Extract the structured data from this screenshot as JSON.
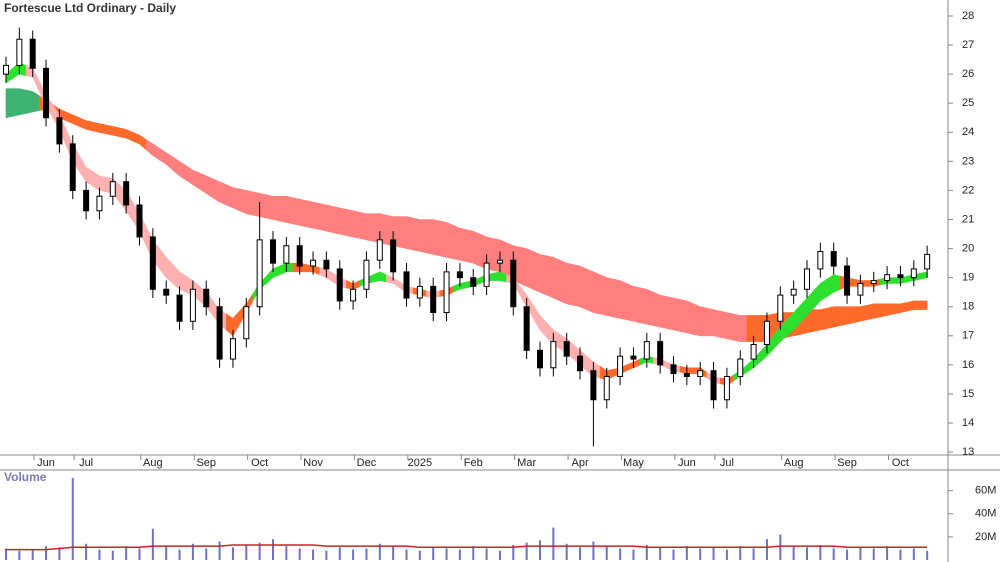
{
  "chart_data": [
    {
      "type": "candlestick",
      "title": "Fortescue Ltd Ordinary - Daily",
      "categories": [
        null,
        null,
        null,
        "Jun",
        null,
        null,
        "Jul",
        null,
        null,
        null,
        null,
        "Aug",
        null,
        null,
        null,
        "Sep",
        null,
        null,
        null,
        "Oct",
        null,
        null,
        null,
        "Nov",
        null,
        null,
        null,
        "Dec",
        null,
        null,
        null,
        "2025",
        null,
        null,
        null,
        "Feb",
        null,
        null,
        null,
        "Mar",
        null,
        null,
        null,
        "Apr",
        null,
        null,
        null,
        "May",
        null,
        null,
        null,
        "Jun",
        null,
        null,
        "Jul",
        null,
        null,
        null,
        null,
        "Aug",
        null,
        null,
        null,
        "Sep",
        null,
        null,
        null,
        "Oct",
        null,
        null
      ],
      "open": [
        26.0,
        26.3,
        27.2,
        26.2,
        24.5,
        23.6,
        22.0,
        21.3,
        21.8,
        22.3,
        21.5,
        20.4,
        18.6,
        18.4,
        17.5,
        18.6,
        18.0,
        16.2,
        16.9,
        18.0,
        20.3,
        19.5,
        20.1,
        19.4,
        19.6,
        19.3,
        18.2,
        18.6,
        19.6,
        20.3,
        19.2,
        18.3,
        18.7,
        17.8,
        19.2,
        19.0,
        18.7,
        19.5,
        19.6,
        18.0,
        16.5,
        15.9,
        16.8,
        16.3,
        15.8,
        14.8,
        15.6,
        16.3,
        16.2,
        16.8,
        16.0,
        15.7,
        15.6,
        15.8,
        14.8,
        15.6,
        16.2,
        16.7,
        17.5,
        18.4,
        18.6,
        19.3,
        19.9,
        19.4,
        18.4,
        18.8,
        18.9,
        19.1,
        19.0,
        19.3
      ],
      "high": [
        26.6,
        27.6,
        27.5,
        26.5,
        24.8,
        23.9,
        22.3,
        22.1,
        22.6,
        22.6,
        21.8,
        20.7,
        18.9,
        18.7,
        18.9,
        18.9,
        18.3,
        17.2,
        18.3,
        21.6,
        20.6,
        20.4,
        20.4,
        19.9,
        19.9,
        19.6,
        18.9,
        19.9,
        20.6,
        20.6,
        19.5,
        19.0,
        19.0,
        19.5,
        19.5,
        19.3,
        19.8,
        19.9,
        19.9,
        18.3,
        16.8,
        17.1,
        17.1,
        16.6,
        16.1,
        15.9,
        16.6,
        16.6,
        17.1,
        17.1,
        16.3,
        16.0,
        16.1,
        16.1,
        15.9,
        16.5,
        17.0,
        17.8,
        18.7,
        18.9,
        19.6,
        20.2,
        20.2,
        19.7,
        19.1,
        19.2,
        19.4,
        19.4,
        19.6,
        20.1
      ],
      "low": [
        25.7,
        26.0,
        25.9,
        24.2,
        23.3,
        21.7,
        21.0,
        21.0,
        21.5,
        21.2,
        20.1,
        18.3,
        18.1,
        17.2,
        17.2,
        17.7,
        15.9,
        15.9,
        16.6,
        17.7,
        19.2,
        19.2,
        19.1,
        19.1,
        19.0,
        17.9,
        17.9,
        18.3,
        19.3,
        18.9,
        18.0,
        18.0,
        17.5,
        17.5,
        18.7,
        18.4,
        18.4,
        19.2,
        17.7,
        16.2,
        15.6,
        15.6,
        16.0,
        15.5,
        13.2,
        14.5,
        15.3,
        15.9,
        15.9,
        15.7,
        15.4,
        15.3,
        15.3,
        14.5,
        14.5,
        15.3,
        15.9,
        16.4,
        17.2,
        18.1,
        18.3,
        19.0,
        19.1,
        18.1,
        18.1,
        18.5,
        18.6,
        18.7,
        18.7,
        19.0
      ],
      "close": [
        26.3,
        27.2,
        26.2,
        24.5,
        23.6,
        22.0,
        21.3,
        21.8,
        22.3,
        21.5,
        20.4,
        18.6,
        18.4,
        17.5,
        18.6,
        18.0,
        16.2,
        16.9,
        18.0,
        20.3,
        19.5,
        20.1,
        19.4,
        19.6,
        19.3,
        18.2,
        18.6,
        19.6,
        20.3,
        19.2,
        18.3,
        18.7,
        17.8,
        19.2,
        19.0,
        18.7,
        19.5,
        19.6,
        18.0,
        16.5,
        15.9,
        16.8,
        16.3,
        15.8,
        14.8,
        15.6,
        16.3,
        16.2,
        16.8,
        16.0,
        15.7,
        15.6,
        15.8,
        14.8,
        15.6,
        16.2,
        16.7,
        17.5,
        18.4,
        18.6,
        19.3,
        19.9,
        19.4,
        18.4,
        18.8,
        18.9,
        19.1,
        19.0,
        19.3,
        19.8
      ],
      "color": "#000000",
      "ylim": [
        12.9,
        28.55
      ],
      "yticks": [
        13,
        14,
        15,
        16,
        17,
        18,
        19,
        20,
        21,
        22,
        23,
        24,
        25,
        26,
        27,
        28
      ],
      "ribbons": [
        {
          "upper": [
            25.5,
            25.5,
            25.4,
            25.1,
            24.8,
            24.6,
            24.4,
            24.3,
            24.2,
            24.1,
            23.9,
            23.6,
            23.3,
            23.0,
            22.7,
            22.5,
            22.3,
            22.1,
            22.0,
            21.9,
            21.8,
            21.8,
            21.7,
            21.6,
            21.5,
            21.4,
            21.3,
            21.2,
            21.2,
            21.1,
            21.1,
            21.0,
            21.0,
            20.9,
            20.7,
            20.6,
            20.4,
            20.3,
            20.1,
            20.0,
            19.8,
            19.7,
            19.5,
            19.4,
            19.2,
            19.0,
            18.9,
            18.7,
            18.6,
            18.4,
            18.3,
            18.2,
            18.0,
            17.9,
            17.8,
            17.7,
            17.7,
            17.7,
            17.8,
            17.8,
            17.9,
            17.9,
            18.0,
            18.0,
            18.0,
            18.1,
            18.1,
            18.1,
            18.2,
            18.2
          ],
          "lower": [
            24.5,
            24.6,
            24.7,
            24.8,
            24.5,
            24.3,
            24.1,
            24.0,
            23.9,
            23.8,
            23.6,
            23.2,
            22.9,
            22.5,
            22.2,
            21.9,
            21.6,
            21.4,
            21.2,
            21.1,
            21.0,
            20.9,
            20.8,
            20.7,
            20.6,
            20.5,
            20.4,
            20.3,
            20.2,
            20.1,
            20.0,
            19.9,
            19.8,
            19.7,
            19.6,
            19.5,
            19.3,
            19.2,
            18.9,
            18.7,
            18.5,
            18.3,
            18.1,
            18.0,
            17.8,
            17.7,
            17.6,
            17.5,
            17.4,
            17.3,
            17.2,
            17.1,
            17.0,
            17.0,
            16.9,
            16.8,
            16.8,
            16.8,
            16.9,
            17.0,
            17.1,
            17.2,
            17.3,
            17.4,
            17.5,
            17.6,
            17.7,
            17.8,
            17.9,
            17.9
          ],
          "colors": [
            "#3cb371",
            "#3cb371",
            "#3cb371",
            "#ff6a2a",
            "#ff6a2a",
            "#ff6a2a",
            "#ff6a2a",
            "#ff6a2a",
            "#ff6a2a",
            "#ff6a2a",
            "#ff6a2a",
            "#ff7f7f",
            "#ff7f7f",
            "#ff7f7f",
            "#ff7f7f",
            "#ff7f7f",
            "#ff7f7f",
            "#ff7f7f",
            "#ff7f7f",
            "#ff7f7f",
            "#ff7f7f",
            "#ff7f7f",
            "#ff7f7f",
            "#ff7f7f",
            "#ff7f7f",
            "#ff7f7f",
            "#ff7f7f",
            "#ff7f7f",
            "#ff7f7f",
            "#ff7f7f",
            "#ff7f7f",
            "#ff7f7f",
            "#ff7f7f",
            "#ff7f7f",
            "#ff7f7f",
            "#ff7f7f",
            "#ff7f7f",
            "#ff7f7f",
            "#ff7f7f",
            "#ff7f7f",
            "#ff7f7f",
            "#ff7f7f",
            "#ff7f7f",
            "#ff7f7f",
            "#ff7f7f",
            "#ff7f7f",
            "#ff7f7f",
            "#ff7f7f",
            "#ff7f7f",
            "#ff7f7f",
            "#ff7f7f",
            "#ff7f7f",
            "#ff7f7f",
            "#ff7f7f",
            "#ff7f7f",
            "#ff7f7f",
            "#ff6a2a",
            "#ff6a2a",
            "#ff6a2a",
            "#ff6a2a",
            "#ff6a2a",
            "#ff6a2a",
            "#ff6a2a",
            "#ff6a2a",
            "#ff6a2a",
            "#ff6a2a",
            "#ff6a2a",
            "#ff6a2a",
            "#ff6a2a",
            "#ff6a2a"
          ]
        },
        {
          "upper": [
            26.0,
            26.4,
            26.2,
            25.3,
            24.6,
            23.6,
            22.8,
            22.5,
            22.4,
            22.0,
            21.2,
            20.3,
            19.7,
            19.2,
            18.9,
            18.5,
            17.9,
            17.6,
            18.1,
            18.8,
            19.3,
            19.5,
            19.5,
            19.4,
            19.3,
            19.0,
            18.8,
            19.0,
            19.2,
            19.0,
            18.7,
            18.6,
            18.5,
            18.6,
            18.8,
            18.9,
            19.1,
            19.2,
            19.0,
            18.4,
            17.7,
            17.2,
            16.9,
            16.5,
            16.1,
            15.8,
            15.9,
            16.1,
            16.3,
            16.2,
            16.0,
            15.9,
            15.9,
            15.6,
            15.5,
            15.8,
            16.2,
            16.7,
            17.3,
            17.8,
            18.3,
            18.8,
            19.1,
            19.0,
            18.9,
            18.9,
            19.0,
            19.0,
            19.1,
            19.2
          ],
          "lower": [
            25.7,
            26.0,
            25.9,
            24.9,
            24.1,
            23.0,
            22.3,
            22.0,
            21.9,
            21.3,
            20.6,
            19.6,
            19.0,
            18.6,
            18.4,
            18.0,
            17.4,
            17.0,
            17.8,
            18.6,
            19.0,
            19.2,
            19.2,
            19.2,
            19.0,
            18.7,
            18.6,
            18.8,
            18.9,
            18.8,
            18.5,
            18.4,
            18.3,
            18.4,
            18.6,
            18.7,
            18.9,
            18.9,
            18.8,
            18.0,
            17.2,
            16.7,
            16.4,
            16.0,
            15.6,
            15.5,
            15.7,
            15.9,
            16.1,
            16.0,
            15.8,
            15.7,
            15.7,
            15.4,
            15.3,
            15.6,
            15.9,
            16.3,
            16.8,
            17.2,
            17.7,
            18.2,
            18.5,
            18.7,
            18.7,
            18.7,
            18.8,
            18.8,
            18.9,
            19.0
          ],
          "colors": [
            "#2ee02e",
            "#2ee02e",
            "#ffb0b0",
            "#ffb0b0",
            "#ffb0b0",
            "#ffb0b0",
            "#ffb0b0",
            "#ffb0b0",
            "#ffb0b0",
            "#ffb0b0",
            "#ffb0b0",
            "#ffb0b0",
            "#ffb0b0",
            "#ffb0b0",
            "#ffb0b0",
            "#ffb0b0",
            "#ffb0b0",
            "#ff6a2a",
            "#ff6a2a",
            "#2ee02e",
            "#2ee02e",
            "#2ee02e",
            "#ff6a2a",
            "#ff6a2a",
            "#ffb0b0",
            "#ffb0b0",
            "#ff6a2a",
            "#2ee02e",
            "#2ee02e",
            "#ffb0b0",
            "#ffb0b0",
            "#ff6a2a",
            "#ffb0b0",
            "#ff6a2a",
            "#2ee02e",
            "#2ee02e",
            "#2ee02e",
            "#2ee02e",
            "#ffb0b0",
            "#ffb0b0",
            "#ffb0b0",
            "#ffb0b0",
            "#ffb0b0",
            "#ffb0b0",
            "#ffb0b0",
            "#ff6a2a",
            "#ff6a2a",
            "#ff6a2a",
            "#2ee02e",
            "#ffb0b0",
            "#ffb0b0",
            "#ff6a2a",
            "#ff6a2a",
            "#ffb0b0",
            "#ff6a2a",
            "#2ee02e",
            "#2ee02e",
            "#2ee02e",
            "#2ee02e",
            "#2ee02e",
            "#2ee02e",
            "#2ee02e",
            "#2ee02e",
            "#ff6a2a",
            "#ff6a2a",
            "#ff6a2a",
            "#2ee02e",
            "#2ee02e",
            "#2ee02e",
            "#2ee02e"
          ]
        }
      ]
    },
    {
      "type": "bar",
      "title": "Volume",
      "values": [
        10,
        8,
        9,
        12,
        11,
        71,
        14,
        9,
        8,
        12,
        10,
        27,
        12,
        9,
        14,
        10,
        16,
        11,
        13,
        15,
        18,
        12,
        10,
        9,
        8,
        11,
        9,
        10,
        14,
        12,
        9,
        8,
        11,
        10,
        9,
        12,
        10,
        8,
        13,
        15,
        17,
        28,
        14,
        11,
        16,
        12,
        10,
        9,
        13,
        11,
        9,
        12,
        10,
        11,
        9,
        12,
        10,
        18,
        22,
        12,
        11,
        13,
        10,
        9,
        11,
        10,
        12,
        9,
        10,
        8
      ],
      "color": "#7070c8",
      "average": {
        "values": [
          9,
          9,
          9,
          9,
          10,
          11,
          11,
          11,
          11,
          11,
          11,
          12,
          12,
          12,
          12,
          12,
          12,
          13,
          13,
          13,
          13,
          13,
          13,
          13,
          12,
          12,
          12,
          12,
          12,
          12,
          12,
          11,
          11,
          11,
          11,
          11,
          11,
          11,
          11,
          12,
          12,
          12,
          12,
          12,
          12,
          12,
          12,
          12,
          11,
          11,
          11,
          11,
          11,
          11,
          11,
          11,
          11,
          11,
          12,
          12,
          12,
          12,
          12,
          11,
          11,
          11,
          11,
          11,
          11,
          11
        ],
        "color": "#cc2222"
      },
      "ylim": [
        0,
        77
      ],
      "yticks": [
        {
          "value": 20,
          "label": "20M"
        },
        {
          "value": 40,
          "label": "40M"
        },
        {
          "value": 60,
          "label": "60M"
        }
      ]
    }
  ]
}
